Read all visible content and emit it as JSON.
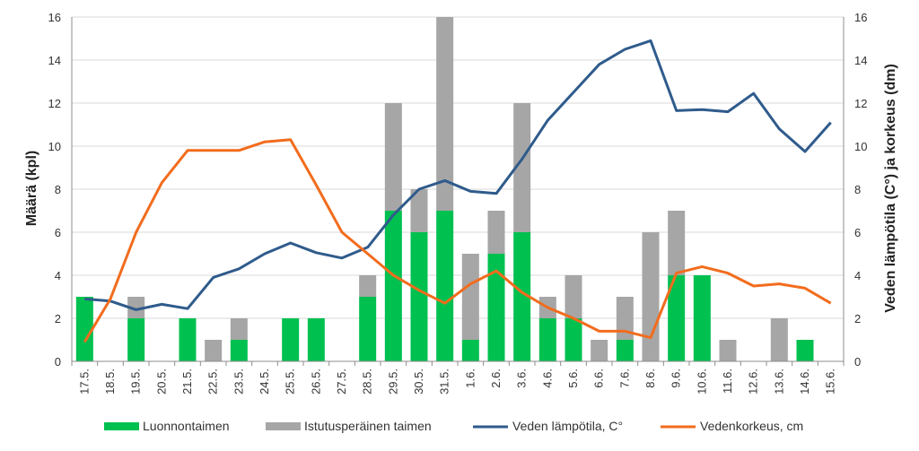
{
  "chart_data": {
    "type": "bar",
    "stacked": true,
    "categories": [
      "17.5.",
      "18.5.",
      "19.5.",
      "20.5.",
      "21.5.",
      "22.5.",
      "23.5.",
      "24.5.",
      "25.5.",
      "26.5.",
      "27.5.",
      "28.5.",
      "29.5.",
      "30.5.",
      "31.5.",
      "1.6.",
      "2.6.",
      "3.6.",
      "4.6.",
      "5.6.",
      "6.6.",
      "7.6.",
      "8.6.",
      "9.6.",
      "10.6.",
      "11.6.",
      "12.6.",
      "13.6.",
      "14.6.",
      "15.6."
    ],
    "bar_series": [
      {
        "name": "Luonnontaimen",
        "color": "#00c050",
        "values": [
          3,
          0,
          2,
          0,
          2,
          0,
          1,
          0,
          2,
          2,
          0,
          3,
          7,
          6,
          7,
          1,
          5,
          6,
          2,
          2,
          0,
          1,
          0,
          4,
          4,
          0,
          0,
          0,
          1,
          0
        ]
      },
      {
        "name": "Istutusperäinen taimen",
        "color": "#a6a6a6",
        "values": [
          0,
          0,
          1,
          0,
          0,
          1,
          1,
          0,
          0,
          0,
          0,
          1,
          5,
          2,
          9,
          4,
          2,
          6,
          1,
          2,
          1,
          2,
          6,
          3,
          0,
          1,
          0,
          2,
          0,
          0
        ]
      }
    ],
    "line_series": [
      {
        "name": "Veden lämpötila, C°",
        "color": "#2f5b8c",
        "axis": "right",
        "values": [
          2.9,
          2.8,
          2.4,
          2.65,
          2.45,
          3.9,
          4.3,
          5.0,
          5.5,
          5.05,
          4.8,
          5.3,
          6.8,
          8.0,
          8.4,
          7.9,
          7.8,
          9.4,
          11.2,
          12.5,
          13.8,
          14.5,
          14.9,
          11.65,
          11.7,
          11.6,
          12.45,
          10.8,
          9.75,
          11.1
        ]
      },
      {
        "name": "Vedenkorkeus, cm",
        "color": "#f26c1d",
        "axis": "right",
        "values": [
          0.9,
          2.9,
          6.0,
          8.3,
          9.8,
          9.8,
          9.8,
          10.2,
          10.3,
          8.2,
          6.0,
          5.0,
          4.0,
          3.3,
          2.7,
          3.6,
          4.2,
          3.2,
          2.5,
          2.0,
          1.4,
          1.4,
          1.1,
          4.1,
          4.4,
          4.1,
          3.5,
          3.6,
          3.4,
          2.7
        ]
      }
    ],
    "ylabel": "Määrä (kpl)",
    "y2label": "Veden lämpötila (C°) ja korkeus (dm)",
    "ylim": [
      0,
      16
    ],
    "y2lim": [
      0,
      16
    ],
    "yticks": [
      "0",
      "2",
      "4",
      "6",
      "8",
      "10",
      "12",
      "14",
      "16"
    ],
    "legend_position": "bottom"
  }
}
